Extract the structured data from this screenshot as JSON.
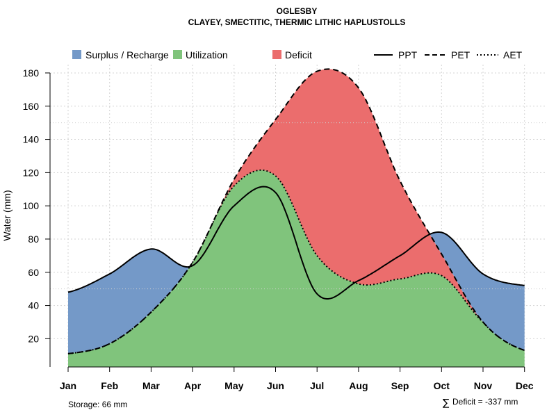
{
  "chart_data": {
    "type": "area",
    "title": "OGLESBY",
    "subtitle": "CLAYEY, SMECTITIC, THERMIC LITHIC HAPLUSTOLLS",
    "xlabel": "",
    "ylabel": "Water (mm)",
    "ylim": [
      3,
      185
    ],
    "yticks": [
      20,
      40,
      60,
      80,
      100,
      120,
      140,
      160,
      180
    ],
    "categories": [
      "Jan",
      "Feb",
      "Mar",
      "Apr",
      "May",
      "Jun",
      "Jul",
      "Aug",
      "Sep",
      "Oct",
      "Nov",
      "Dec"
    ],
    "series": [
      {
        "name": "PPT",
        "style": "solid",
        "values": [
          48,
          59,
          74,
          64,
          100,
          108,
          47,
          55,
          70,
          84,
          59,
          52
        ]
      },
      {
        "name": "PET",
        "style": "dashed",
        "values": [
          11,
          17,
          36,
          66,
          116,
          152,
          181,
          171,
          115,
          71,
          30,
          13
        ]
      },
      {
        "name": "AET",
        "style": "dotted",
        "values": [
          11,
          17,
          36,
          66,
          112,
          118,
          70,
          53,
          56,
          58,
          30,
          13
        ]
      }
    ],
    "fill_categories": [
      {
        "name": "Surplus / Recharge",
        "color": "#7499C8"
      },
      {
        "name": "Utilization",
        "color": "#80C47C"
      },
      {
        "name": "Deficit",
        "color": "#EB6D6D"
      }
    ],
    "dotted_hlines": [
      50,
      150
    ],
    "grid": true,
    "legend_placement": "top",
    "annotations": {
      "storage": "Storage: 66 mm",
      "deficit_symbol": "∑",
      "deficit": "Deficit = -337 mm"
    }
  }
}
